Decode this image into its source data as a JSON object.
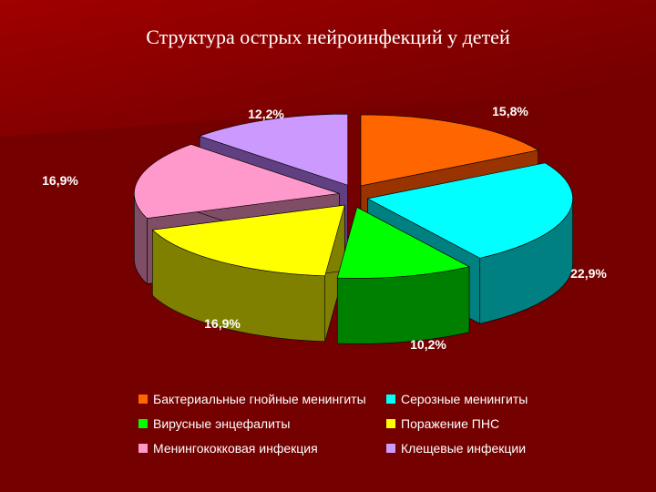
{
  "title": "Структура острых нейроинфекций у детей",
  "colors": {
    "background": "#7a0000",
    "text": "#ffffff"
  },
  "chart_data": {
    "type": "pie",
    "style": "3d-exploded",
    "title": "Структура острых нейроинфекций у детей",
    "legend_position": "bottom",
    "slices": [
      {
        "name": "Бактериальные гнойные менингиты",
        "value": 15.8,
        "label": "15,8%",
        "color": "#ff6600",
        "side": "#993300"
      },
      {
        "name": "Серозные менингиты",
        "value": 22.9,
        "label": "22,9%",
        "color": "#00ffff",
        "side": "#008080"
      },
      {
        "name": "Вирусные энцефалиты",
        "value": 10.2,
        "label": "10,2%",
        "color": "#00ff00",
        "side": "#008000"
      },
      {
        "name": "Поражение ПНС",
        "value": 16.9,
        "label": "16,9%",
        "color": "#ffff00",
        "side": "#808000"
      },
      {
        "name": "Менингококковая инфекция",
        "value": 16.9,
        "label": "16,9%",
        "color": "#ff99cc",
        "side": "#804d66"
      },
      {
        "name": "Клещевые инфекции",
        "value": 12.2,
        "label": "12,2%",
        "color": "#cc99ff",
        "side": "#604080"
      }
    ]
  },
  "legend": {
    "items": [
      {
        "label": "Бактериальные гнойные менингиты",
        "color": "#ff6600"
      },
      {
        "label": "Серозные менингиты",
        "color": "#00ffff"
      },
      {
        "label": "Вирусные энцефалиты",
        "color": "#00ff00"
      },
      {
        "label": "Поражение ПНС",
        "color": "#ffff00"
      },
      {
        "label": "Менингококковая инфекция",
        "color": "#ff99cc"
      },
      {
        "label": "Клещевые инфекции",
        "color": "#cc99ff"
      }
    ]
  }
}
